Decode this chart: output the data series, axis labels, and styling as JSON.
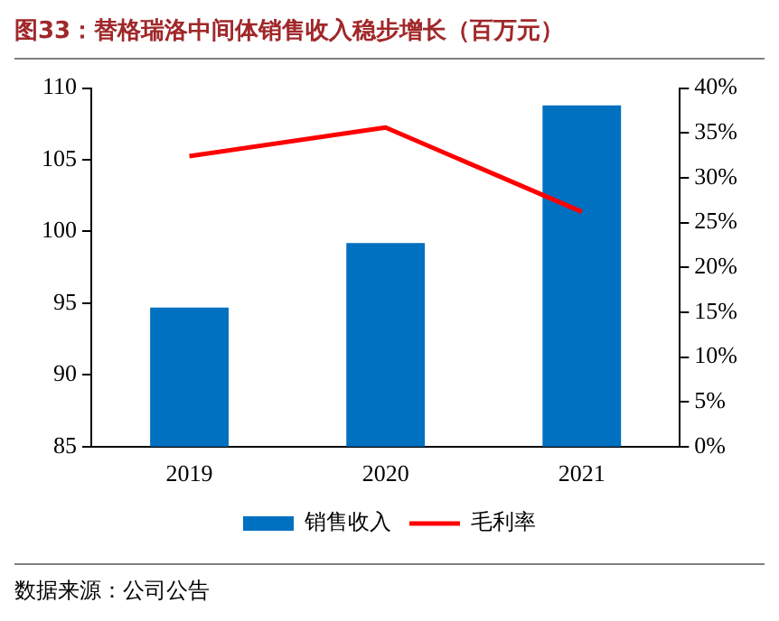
{
  "chart_data": {
    "type": "bar",
    "title": "图33：替格瑞洛中间体销售收入稳步增长（百万元）",
    "categories": [
      "2019",
      "2020",
      "2021"
    ],
    "series": [
      {
        "name": "销售收入",
        "color": "#0070c0",
        "values": [
          94.7,
          99.2,
          108.8
        ]
      },
      {
        "name": "毛利率",
        "type": "line",
        "axis": "y2",
        "color": "#ff0000",
        "values": [
          32.4,
          35.6,
          26.2
        ]
      }
    ],
    "ylim": [
      85,
      110
    ],
    "yticks": [
      85,
      90,
      95,
      100,
      105,
      110
    ],
    "y2lim": [
      0,
      40
    ],
    "y2ticks": [
      {
        "value": 0,
        "label": "0%"
      },
      {
        "value": 5,
        "label": "5%"
      },
      {
        "value": 10,
        "label": "10%"
      },
      {
        "value": 15,
        "label": "15%"
      },
      {
        "value": 20,
        "label": "20%"
      },
      {
        "value": 25,
        "label": "25%"
      },
      {
        "value": 30,
        "label": "30%"
      },
      {
        "value": 35,
        "label": "35%"
      },
      {
        "value": 40,
        "label": "40%"
      }
    ],
    "grid": false,
    "legend": "bottom",
    "marker": "none",
    "line_style": "solid",
    "annotations": [
      "数据来源：公司公告"
    ]
  }
}
